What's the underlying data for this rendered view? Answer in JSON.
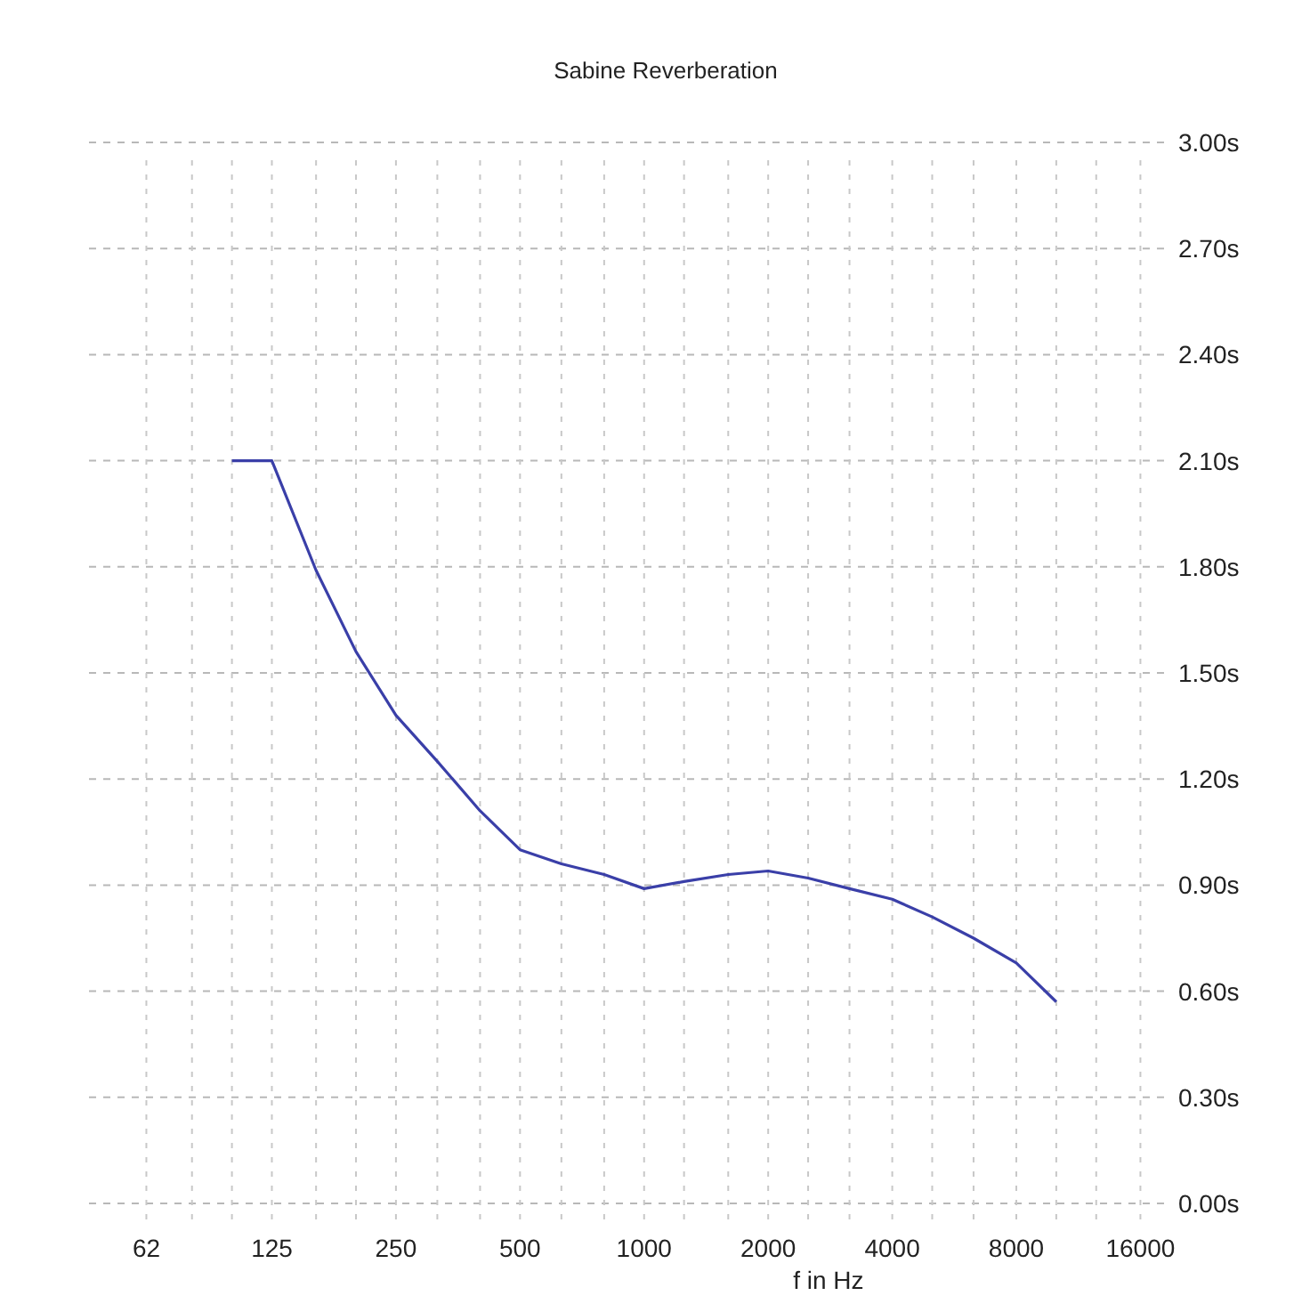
{
  "chart_data": {
    "type": "line",
    "title": "Sabine Reverberation",
    "xlabel": "f in Hz",
    "log": "x",
    "x": [
      100,
      125,
      160,
      200,
      250,
      315,
      400,
      500,
      630,
      800,
      1000,
      1250,
      1600,
      2000,
      2500,
      3150,
      4000,
      5000,
      6300,
      8000,
      10000
    ],
    "series": [
      {
        "color": "#3a3fa8",
        "values": [
          2.1,
          2.1,
          1.79,
          1.56,
          1.38,
          1.25,
          1.11,
          1.0,
          0.96,
          0.93,
          0.89,
          0.91,
          0.93,
          0.94,
          0.92,
          0.89,
          0.86,
          0.81,
          0.75,
          0.68,
          0.57
        ]
      }
    ],
    "xlim": [
      45,
      19000
    ],
    "xticks": [
      {
        "value": 62,
        "label": "62"
      },
      {
        "value": 80,
        "label": null
      },
      {
        "value": 100,
        "label": null
      },
      125,
      {
        "value": 160,
        "label": null
      },
      {
        "value": 200,
        "label": null
      },
      250,
      {
        "value": 315,
        "label": null
      },
      {
        "value": 400,
        "label": null
      },
      500,
      {
        "value": 630,
        "label": null
      },
      {
        "value": 800,
        "label": null
      },
      1000,
      {
        "value": 1250,
        "label": null
      },
      {
        "value": 1600,
        "label": null
      },
      2000,
      {
        "value": 2500,
        "label": null
      },
      {
        "value": 3150,
        "label": null
      },
      4000,
      {
        "value": 5000,
        "label": null
      },
      {
        "value": 6300,
        "label": null
      },
      8000,
      {
        "value": 10000,
        "label": null
      },
      {
        "value": 12500,
        "label": null
      },
      16000
    ],
    "ylim": [
      0,
      3
    ],
    "yticks": [
      {
        "value": 0,
        "label": "0.00s"
      },
      {
        "value": 0.3,
        "label": "0.30s"
      },
      {
        "value": 0.6,
        "label": "0.60s"
      },
      {
        "value": 0.9,
        "label": "0.90s"
      },
      {
        "value": 1.2,
        "label": "1.20s"
      },
      {
        "value": 1.5,
        "label": "1.50s"
      },
      {
        "value": 1.8,
        "label": "1.80s"
      },
      {
        "value": 2.1,
        "label": "2.10s"
      },
      {
        "value": 2.4,
        "label": "2.40s"
      },
      {
        "value": 2.7,
        "label": "2.70s"
      },
      {
        "value": 3,
        "label": "3.00s"
      }
    ],
    "grid": true,
    "marker": "none",
    "line_style": "solid"
  }
}
